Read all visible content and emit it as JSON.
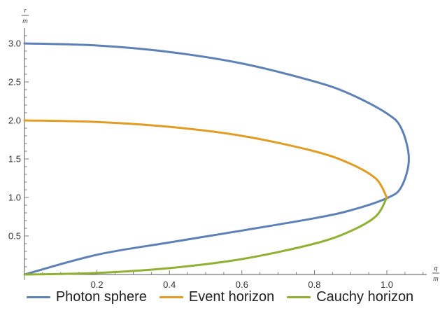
{
  "chart_data": {
    "type": "line",
    "title": "",
    "xlabel": {
      "numerator": "q",
      "denominator": "m"
    },
    "ylabel": {
      "numerator": "r",
      "denominator": "m"
    },
    "xlim": [
      0,
      1.11
    ],
    "ylim": [
      0,
      3.2
    ],
    "xticks": [
      0.2,
      0.4,
      0.6,
      0.8,
      1.0
    ],
    "xtick_labels": [
      "0.2",
      "0.4",
      "0.6",
      "0.8",
      "1.0"
    ],
    "yticks": [
      0.5,
      1.0,
      1.5,
      2.0,
      2.5,
      3.0
    ],
    "ytick_labels": [
      "0.5",
      "1.0",
      "1.5",
      "2.0",
      "2.5",
      "3.0"
    ],
    "grid": false,
    "legend_position": "bottom",
    "series": [
      {
        "name": "Photon sphere",
        "color": "#5e81b5",
        "x": [
          0.0,
          0.2,
          0.4,
          0.6,
          0.8,
          0.9,
          1.0,
          1.04,
          1.0607,
          1.04,
          1.0,
          0.9,
          0.8,
          0.6,
          0.4,
          0.2,
          0.0
        ],
        "y": [
          3.0,
          2.973,
          2.889,
          2.74,
          2.506,
          2.34,
          2.091,
          1.897,
          1.5,
          1.137,
          0.991,
          0.833,
          0.73,
          0.57,
          0.416,
          0.256,
          0.0
        ]
      },
      {
        "name": "Event horizon",
        "color": "#e19c24",
        "x": [
          0.0,
          0.2,
          0.4,
          0.6,
          0.8,
          0.9,
          0.97,
          1.0
        ],
        "y": [
          2.0,
          1.98,
          1.917,
          1.8,
          1.6,
          1.436,
          1.243,
          1.0
        ]
      },
      {
        "name": "Cauchy horizon",
        "color": "#8fb032",
        "x": [
          0.0,
          0.2,
          0.4,
          0.6,
          0.8,
          0.9,
          0.97,
          1.0
        ],
        "y": [
          0.0,
          0.02,
          0.083,
          0.2,
          0.4,
          0.564,
          0.757,
          1.0
        ]
      }
    ]
  }
}
